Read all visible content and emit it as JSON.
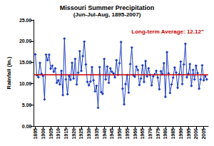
{
  "chart_data": {
    "type": "line",
    "title": "Missouri Summer Precipitation",
    "subtitle": "(Jun-Jul-Aug, 1895-2007)",
    "y_label": "Rainfall (in.)",
    "color": "#1f3fbf",
    "marker": "diamond",
    "line_style": "solid",
    "grid": false,
    "x": [
      1895,
      1896,
      1897,
      1898,
      1899,
      1900,
      1901,
      1902,
      1903,
      1904,
      1905,
      1906,
      1907,
      1908,
      1909,
      1910,
      1911,
      1912,
      1913,
      1914,
      1915,
      1916,
      1917,
      1918,
      1919,
      1920,
      1921,
      1922,
      1923,
      1924,
      1925,
      1926,
      1927,
      1928,
      1929,
      1930,
      1931,
      1932,
      1933,
      1934,
      1935,
      1936,
      1937,
      1938,
      1939,
      1940,
      1941,
      1942,
      1943,
      1944,
      1945,
      1946,
      1947,
      1948,
      1949,
      1950,
      1951,
      1952,
      1953,
      1954,
      1955,
      1956,
      1957,
      1958,
      1959,
      1960,
      1961,
      1962,
      1963,
      1964,
      1965,
      1966,
      1967,
      1968,
      1969,
      1970,
      1971,
      1972,
      1973,
      1974,
      1975,
      1976,
      1977,
      1978,
      1979,
      1980,
      1981,
      1982,
      1983,
      1984,
      1985,
      1986,
      1987,
      1988,
      1989,
      1990,
      1991,
      1992,
      1993,
      1994,
      1995,
      1996,
      1997,
      1998,
      1999,
      2000,
      2001,
      2002,
      2003,
      2004,
      2005,
      2006,
      2007
    ],
    "values": [
      16.9,
      12.0,
      11.5,
      14.9,
      12.3,
      11.8,
      6.3,
      16.8,
      15.5,
      16.8,
      13.5,
      14.2,
      12.8,
      13.6,
      10.2,
      10.8,
      9.8,
      13.0,
      7.3,
      20.6,
      11.0,
      7.5,
      11.8,
      10.9,
      14.9,
      11.2,
      15.8,
      9.8,
      12.6,
      17.6,
      13.0,
      16.5,
      19.9,
      14.5,
      10.4,
      9.6,
      10.5,
      13.9,
      10.8,
      8.2,
      9.5,
      4.3,
      13.9,
      8.0,
      7.6,
      15.8,
      11.0,
      14.0,
      10.2,
      13.6,
      12.8,
      12.4,
      11.5,
      15.5,
      12.1,
      14.8,
      19.8,
      8.8,
      5.1,
      9.9,
      12.0,
      7.9,
      14.6,
      18.5,
      12.0,
      11.6,
      14.0,
      13.2,
      9.7,
      11.2,
      14.3,
      10.4,
      15.3,
      11.7,
      13.6,
      12.0,
      9.6,
      11.7,
      12.2,
      13.0,
      11.4,
      8.7,
      12.9,
      12.2,
      14.8,
      6.9,
      17.4,
      12.4,
      7.8,
      9.8,
      11.4,
      13.8,
      12.6,
      9.0,
      12.2,
      15.2,
      9.9,
      14.5,
      19.4,
      11.5,
      12.3,
      14.6,
      9.5,
      13.2,
      11.0,
      14.2,
      12.5,
      8.8,
      11.0,
      14.3,
      10.8,
      11.8,
      11.0
    ],
    "xlim": [
      1894,
      2008
    ],
    "xticks": [
      1895,
      1900,
      1905,
      1910,
      1915,
      1920,
      1925,
      1930,
      1935,
      1940,
      1945,
      1950,
      1955,
      1960,
      1965,
      1970,
      1975,
      1980,
      1985,
      1990,
      1995,
      2000,
      2005
    ],
    "ylim": [
      0,
      25
    ],
    "yticks": [
      {
        "value": 0,
        "label": "0.00"
      },
      {
        "value": 5,
        "label": "5.00"
      },
      {
        "value": 10,
        "label": "10.00"
      },
      {
        "value": 15,
        "label": "15.00"
      },
      {
        "value": 20,
        "label": "20.00"
      },
      {
        "value": 25,
        "label": "25.00"
      }
    ],
    "reference_line": {
      "value": 12.12,
      "label": "Long-term Average: 12.12\"",
      "color": "#cc0000"
    }
  }
}
